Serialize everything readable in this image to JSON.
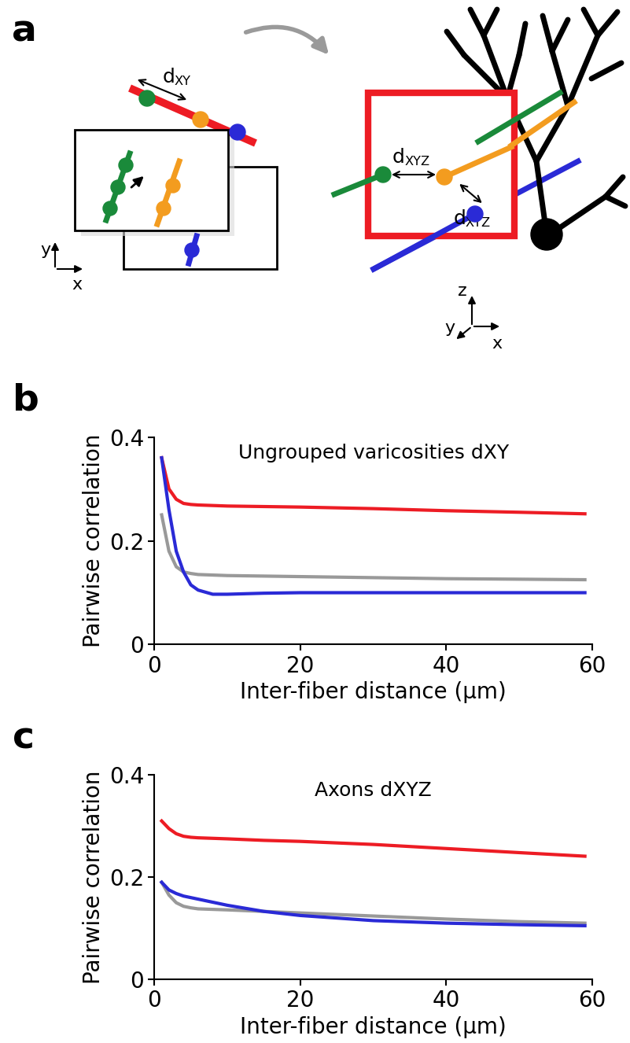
{
  "diagram": {
    "panel_label": "a",
    "left": {
      "distance_label": "dXY",
      "axis_labels": [
        "x",
        "y"
      ]
    },
    "right": {
      "distance_labels": [
        "dXYZ",
        "dXYZ"
      ],
      "axis_labels": [
        "x",
        "y",
        "z"
      ]
    }
  },
  "chart_data": [
    {
      "type": "line",
      "panel_label": "b",
      "title": "Ungrouped varicosities dXY",
      "x_label": "Inter-fiber distance (μm)",
      "y_label": "Pairwise correlation",
      "x": [
        1,
        2,
        3,
        4,
        5,
        6,
        8,
        10,
        15,
        20,
        30,
        40,
        50,
        59
      ],
      "series": [
        {
          "color": "#ed1c24",
          "values": [
            0.36,
            0.3,
            0.28,
            0.272,
            0.27,
            0.269,
            0.268,
            0.267,
            0.266,
            0.265,
            0.262,
            0.258,
            0.255,
            0.252
          ]
        },
        {
          "color": "#999999",
          "values": [
            0.25,
            0.18,
            0.15,
            0.14,
            0.137,
            0.135,
            0.134,
            0.133,
            0.132,
            0.131,
            0.129,
            0.127,
            0.126,
            0.125
          ]
        },
        {
          "color": "#2a2ad6",
          "values": [
            0.36,
            0.26,
            0.18,
            0.14,
            0.115,
            0.105,
            0.097,
            0.097,
            0.099,
            0.1,
            0.1,
            0.1,
            0.1,
            0.1
          ]
        }
      ],
      "xlim": [
        0,
        60
      ],
      "xticks": [
        0,
        20,
        40,
        60
      ],
      "ylim": [
        0,
        0.4
      ],
      "yticks": [
        0,
        0.2,
        0.4
      ],
      "grid": false
    },
    {
      "type": "line",
      "panel_label": "c",
      "title": "Axons dXYZ",
      "x_label": "Inter-fiber distance (μm)",
      "y_label": "Pairwise correlation",
      "x": [
        1,
        2,
        3,
        4,
        5,
        6,
        8,
        10,
        15,
        20,
        30,
        40,
        50,
        59
      ],
      "series": [
        {
          "color": "#ed1c24",
          "values": [
            0.31,
            0.295,
            0.285,
            0.28,
            0.278,
            0.277,
            0.276,
            0.275,
            0.272,
            0.27,
            0.264,
            0.256,
            0.248,
            0.241
          ]
        },
        {
          "color": "#999999",
          "values": [
            0.19,
            0.165,
            0.15,
            0.143,
            0.14,
            0.138,
            0.137,
            0.136,
            0.133,
            0.13,
            0.124,
            0.118,
            0.113,
            0.11
          ]
        },
        {
          "color": "#2a2ad6",
          "values": [
            0.19,
            0.175,
            0.168,
            0.163,
            0.16,
            0.157,
            0.151,
            0.145,
            0.133,
            0.125,
            0.115,
            0.11,
            0.107,
            0.105
          ]
        }
      ],
      "xlim": [
        0,
        60
      ],
      "xticks": [
        0,
        20,
        40,
        60
      ],
      "ylim": [
        0,
        0.4
      ],
      "yticks": [
        0,
        0.2,
        0.4
      ],
      "grid": false
    }
  ]
}
